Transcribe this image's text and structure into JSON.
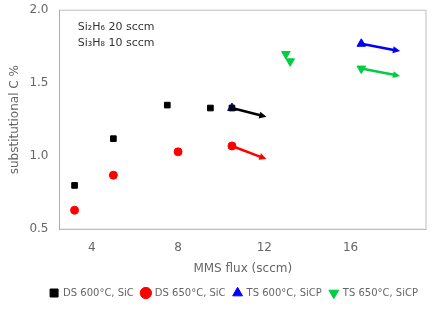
{
  "chart_data": {
    "type": "scatter",
    "xlabel": "MMS flux (sccm)",
    "ylabel": "substitutional C %",
    "xlim": [
      2.5,
      19.5
    ],
    "ylim": [
      0.5,
      2.0
    ],
    "xticks": [
      4,
      8,
      12,
      16
    ],
    "yticks": [
      0.5,
      {
        "value": 1.0,
        "label": "1.0"
      },
      1.5,
      {
        "value": 2.0,
        "label": "2.0"
      }
    ],
    "annotation": "Si₂H₆ 20 sccm\nSi₃H₈ 10 sccm",
    "grid": false,
    "legend": "lower right",
    "series": [
      {
        "name": "DS 600°C, SiC",
        "color": "#000000",
        "marker": "square",
        "x": [
          3.2,
          5.0,
          7.5,
          9.5,
          10.5
        ],
        "values": [
          0.8,
          1.12,
          1.35,
          1.33,
          1.33
        ]
      },
      {
        "name": "DS 650°C, SiC",
        "color": "#ff0000",
        "marker": "circle",
        "x": [
          3.2,
          5.0,
          8.0,
          10.5
        ],
        "values": [
          0.63,
          0.87,
          1.03,
          1.07
        ]
      },
      {
        "name": "TS 600°C, SiCP",
        "color": "#0000ff",
        "marker": "triangle-up",
        "x": [
          10.5,
          16.5
        ],
        "values": [
          1.33,
          1.77
        ]
      },
      {
        "name": "TS 650°C, SiCP",
        "color": "#00cc44",
        "marker": "triangle-down",
        "x": [
          13.0,
          13.2,
          16.5
        ],
        "values": [
          1.7,
          1.65,
          1.6
        ]
      }
    ],
    "arrows": [
      {
        "x": [
          10.5,
          12.1
        ],
        "y": [
          1.33,
          1.27
        ],
        "color": "#000000"
      },
      {
        "x": [
          10.5,
          12.1
        ],
        "y": [
          1.07,
          0.98
        ],
        "color": "#ff0000"
      },
      {
        "x": [
          16.5,
          18.3
        ],
        "y": [
          1.77,
          1.72
        ],
        "color": "#0000ff"
      },
      {
        "x": [
          16.5,
          18.3
        ],
        "y": [
          1.6,
          1.55
        ],
        "color": "#00cc44"
      }
    ]
  }
}
